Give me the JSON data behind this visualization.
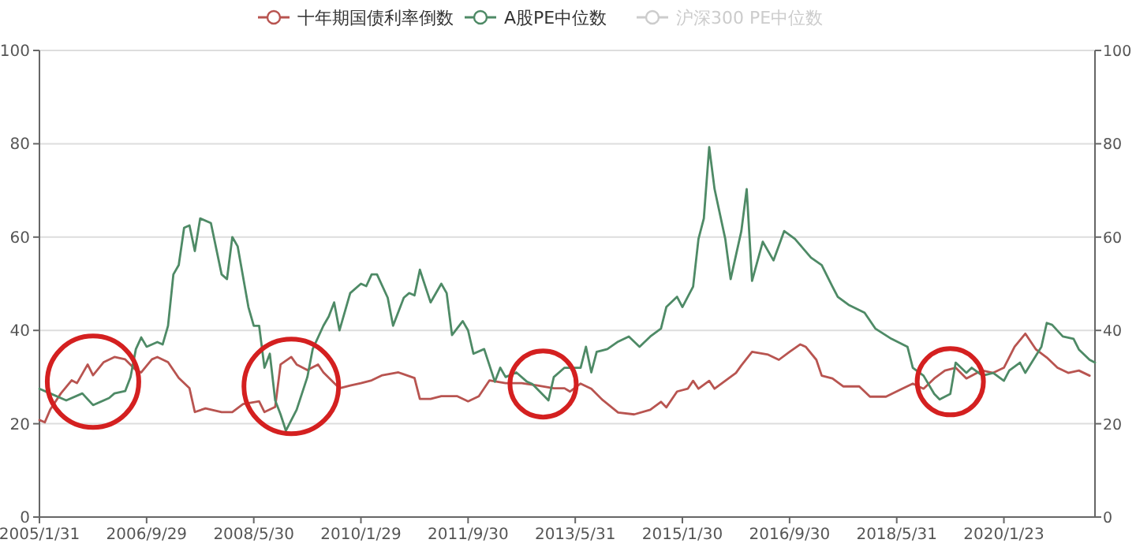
{
  "chart_data": {
    "type": "line",
    "legend": "top",
    "grid": "y",
    "xlim": [
      "2005-01",
      "2021-06"
    ],
    "xticks": [
      {
        "value": "2005-01",
        "label": "2005/1/31"
      },
      {
        "value": "2006-09",
        "label": "2006/9/29"
      },
      {
        "value": "2008-05",
        "label": "2008/5/30"
      },
      {
        "value": "2010-01",
        "label": "2010/1/29"
      },
      {
        "value": "2011-09",
        "label": "2011/9/30"
      },
      {
        "value": "2013-05",
        "label": "2013/5/31"
      },
      {
        "value": "2015-01",
        "label": "2015/1/30"
      },
      {
        "value": "2016-09",
        "label": "2016/9/30"
      },
      {
        "value": "2018-05",
        "label": "2018/5/31"
      },
      {
        "value": "2020-01",
        "label": "2020/1/23"
      }
    ],
    "ylim": [
      0,
      100
    ],
    "yticks": [
      0,
      20,
      40,
      60,
      80,
      100
    ],
    "y2lim": [
      0,
      100
    ],
    "y2ticks": [
      0,
      20,
      40,
      60,
      80,
      100
    ],
    "series": [
      {
        "name": "十年期国债利率倒数",
        "color": "#b85450",
        "x": [
          "2005-01",
          "2005-02",
          "2005-03",
          "2005-05",
          "2005-07",
          "2005-08",
          "2005-10",
          "2005-11",
          "2006-01",
          "2006-03",
          "2006-05",
          "2006-07",
          "2006-08",
          "2006-10",
          "2006-11",
          "2007-01",
          "2007-03",
          "2007-05",
          "2007-06",
          "2007-08",
          "2007-11",
          "2008-01",
          "2008-03",
          "2008-06",
          "2008-07",
          "2008-09",
          "2008-10",
          "2008-12",
          "2009-01",
          "2009-03",
          "2009-05",
          "2009-06",
          "2009-08",
          "2009-09",
          "2009-11",
          "2010-01",
          "2010-03",
          "2010-05",
          "2010-08",
          "2010-11",
          "2010-12",
          "2011-02",
          "2011-04",
          "2011-07",
          "2011-09",
          "2011-11",
          "2012-01",
          "2012-04",
          "2012-07",
          "2012-10",
          "2013-01",
          "2013-03",
          "2013-04",
          "2013-06",
          "2013-08",
          "2013-10",
          "2014-01",
          "2014-04",
          "2014-07",
          "2014-09",
          "2014-10",
          "2014-12",
          "2015-02",
          "2015-03",
          "2015-04",
          "2015-06",
          "2015-07",
          "2015-09",
          "2015-11",
          "2015-12",
          "2016-02",
          "2016-05",
          "2016-07",
          "2016-09",
          "2016-11",
          "2016-12",
          "2017-02",
          "2017-03",
          "2017-05",
          "2017-07",
          "2017-10",
          "2017-12",
          "2018-03",
          "2018-06",
          "2018-08",
          "2018-10",
          "2018-12",
          "2019-02",
          "2019-04",
          "2019-06",
          "2019-08",
          "2019-09",
          "2019-11",
          "2020-01",
          "2020-03",
          "2020-05",
          "2020-07",
          "2020-09",
          "2020-11",
          "2021-01",
          "2021-03",
          "2021-05"
        ],
        "values": [
          20.8,
          20.3,
          23,
          26.5,
          29.3,
          28.7,
          32.7,
          30.4,
          33.2,
          34.3,
          33.8,
          31.5,
          31,
          33.8,
          34.3,
          33.2,
          29.8,
          27.6,
          22.5,
          23.3,
          22.5,
          22.5,
          24.2,
          24.8,
          22.5,
          23.6,
          32.7,
          34.3,
          32.7,
          31.5,
          32.7,
          31,
          28.7,
          27.6,
          28.2,
          28.7,
          29.3,
          30.4,
          31,
          29.8,
          25.3,
          25.3,
          25.9,
          25.9,
          24.8,
          25.9,
          29.3,
          28.7,
          28.7,
          28.2,
          27.6,
          27.6,
          26.9,
          28.6,
          27.5,
          25.2,
          22.4,
          22,
          23,
          24.7,
          23.5,
          26.9,
          27.5,
          29.2,
          27.5,
          29.2,
          27.5,
          29.2,
          30.9,
          32.5,
          35.4,
          34.8,
          33.7,
          35.4,
          37,
          36.5,
          33.7,
          30.3,
          29.7,
          28,
          28,
          25.8,
          25.8,
          27.5,
          28.6,
          27.5,
          29.7,
          31.4,
          32,
          29.7,
          30.9,
          31.4,
          30.9,
          32,
          36.5,
          39.3,
          35.9,
          34.2,
          32,
          30.9,
          31.4,
          30.3
        ]
      },
      {
        "name": "A股PE中位数",
        "color": "#4e8a66",
        "x": [
          "2005-01",
          "2005-03",
          "2005-06",
          "2005-09",
          "2005-11",
          "2006-02",
          "2006-03",
          "2006-05",
          "2006-06",
          "2006-07",
          "2006-08",
          "2006-09",
          "2006-11",
          "2006-12",
          "2007-01",
          "2007-02",
          "2007-03",
          "2007-04",
          "2007-05",
          "2007-06",
          "2007-07",
          "2007-09",
          "2007-11",
          "2007-12",
          "2008-01",
          "2008-02",
          "2008-04",
          "2008-05",
          "2008-06",
          "2008-07",
          "2008-08",
          "2008-09",
          "2008-10",
          "2008-11",
          "2009-01",
          "2009-03",
          "2009-04",
          "2009-06",
          "2009-07",
          "2009-08",
          "2009-09",
          "2009-11",
          "2010-01",
          "2010-02",
          "2010-03",
          "2010-04",
          "2010-06",
          "2010-07",
          "2010-09",
          "2010-10",
          "2010-11",
          "2010-12",
          "2011-02",
          "2011-04",
          "2011-05",
          "2011-06",
          "2011-08",
          "2011-09",
          "2011-10",
          "2011-12",
          "2012-02",
          "2012-03",
          "2012-04",
          "2012-06",
          "2012-08",
          "2012-09",
          "2012-12",
          "2013-01",
          "2013-03",
          "2013-04",
          "2013-06",
          "2013-07",
          "2013-08",
          "2013-09",
          "2013-11",
          "2014-01",
          "2014-03",
          "2014-05",
          "2014-07",
          "2014-09",
          "2014-10",
          "2014-12",
          "2015-01",
          "2015-03",
          "2015-04",
          "2015-05",
          "2015-06",
          "2015-07",
          "2015-09",
          "2015-10",
          "2015-12",
          "2016-01",
          "2016-02",
          "2016-04",
          "2016-06",
          "2016-08",
          "2016-10",
          "2017-01",
          "2017-03",
          "2017-05",
          "2017-06",
          "2017-08",
          "2017-11",
          "2018-01",
          "2018-04",
          "2018-07",
          "2018-08",
          "2018-10",
          "2018-12",
          "2019-01",
          "2019-03",
          "2019-04",
          "2019-06",
          "2019-07",
          "2019-09",
          "2019-11",
          "2020-01",
          "2020-02",
          "2020-04",
          "2020-05",
          "2020-08",
          "2020-09",
          "2020-10",
          "2020-12",
          "2021-02",
          "2021-03",
          "2021-05",
          "2021-06"
        ],
        "values": [
          27.5,
          26.5,
          25,
          26.5,
          24,
          25.5,
          26.5,
          27,
          30,
          36,
          38.5,
          36.5,
          37.5,
          37,
          41,
          52,
          54,
          62,
          62.5,
          57,
          64,
          63,
          52,
          51,
          60,
          58,
          45,
          41,
          41,
          32,
          35,
          25,
          22,
          18.5,
          23,
          30,
          36,
          41,
          43,
          46,
          40,
          48,
          50,
          49.5,
          52,
          52,
          47,
          41,
          47,
          48,
          47.5,
          53,
          46,
          50,
          48,
          39,
          42,
          40,
          35,
          36,
          29,
          32,
          30,
          31,
          29,
          28.5,
          25,
          30,
          32,
          32,
          32,
          36.5,
          31,
          35.4,
          36,
          37.6,
          38.7,
          36.5,
          38.7,
          40.4,
          45,
          47.2,
          45,
          49.4,
          59.6,
          64,
          79.3,
          70.3,
          59.6,
          51,
          61.3,
          70.3,
          50.6,
          59,
          55,
          61.3,
          59.6,
          55.6,
          54,
          49.4,
          47.2,
          45.5,
          43.8,
          40.4,
          38.2,
          36.5,
          32,
          30.3,
          26.4,
          25.2,
          26.4,
          33.1,
          30.9,
          32,
          30.3,
          30.9,
          29.2,
          31.4,
          33.1,
          30.9,
          36.5,
          41.6,
          41.2,
          38.7,
          38.2,
          35.9,
          33.7,
          33.1
        ]
      },
      {
        "name": "沪深300 PE中位数",
        "color": "#cccccc"
      }
    ]
  }
}
